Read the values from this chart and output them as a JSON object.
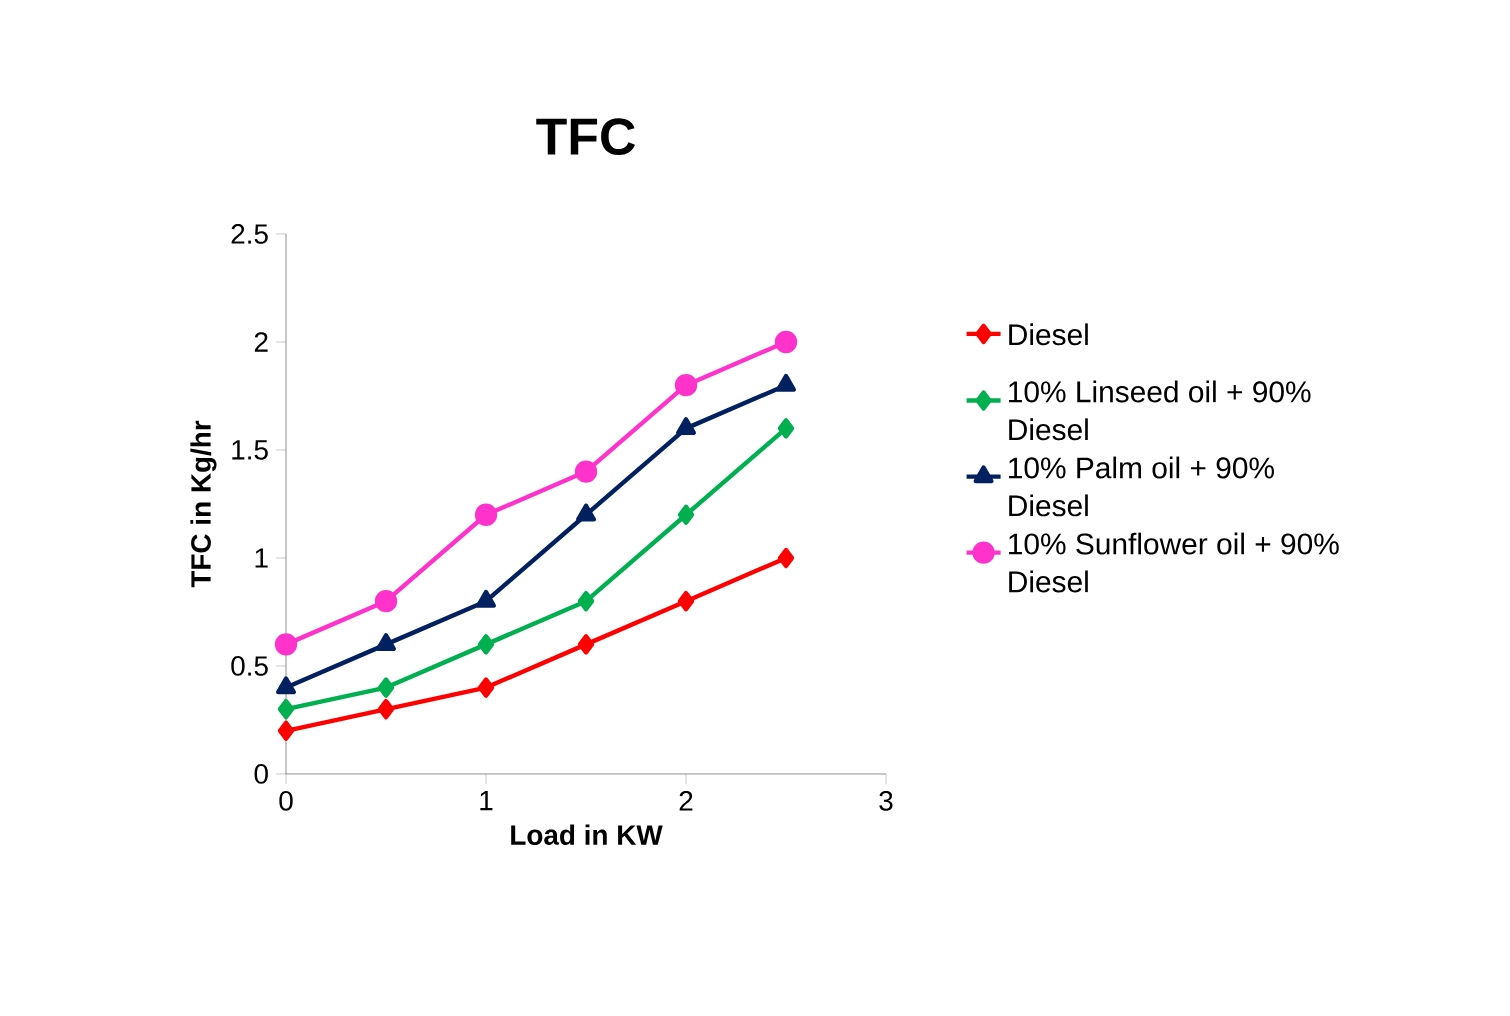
{
  "chart_data": {
    "type": "line",
    "title": "TFC",
    "xlabel": "Load in KW",
    "ylabel": "TFC in Kg/hr",
    "x": [
      0,
      0.5,
      1,
      1.5,
      2,
      2.5
    ],
    "series": [
      {
        "name": "Diesel",
        "color": "#ff0000",
        "marker": "diamond",
        "values": [
          0.2,
          0.3,
          0.4,
          0.6,
          0.8,
          1.0
        ]
      },
      {
        "name": "10% Linseed oil + 90% Diesel",
        "color": "#00b050",
        "marker": "diamond",
        "values": [
          0.3,
          0.4,
          0.6,
          0.8,
          1.2,
          1.6
        ]
      },
      {
        "name": "10% Palm oil + 90% Diesel",
        "color": "#002060",
        "marker": "triangle",
        "values": [
          0.4,
          0.6,
          0.8,
          1.2,
          1.6,
          1.8
        ]
      },
      {
        "name": "10% Sunflower oil + 90% Diesel",
        "color": "#ff33cc",
        "marker": "circle",
        "values": [
          0.6,
          0.8,
          1.2,
          1.4,
          1.8,
          2.0
        ]
      }
    ],
    "xlim": [
      0,
      3
    ],
    "xticks": [
      0,
      1,
      2,
      3
    ],
    "ylim": [
      0,
      2.5
    ],
    "yticks": [
      0,
      0.5,
      1,
      1.5,
      2,
      2.5
    ],
    "grid": false,
    "legend": "right"
  }
}
